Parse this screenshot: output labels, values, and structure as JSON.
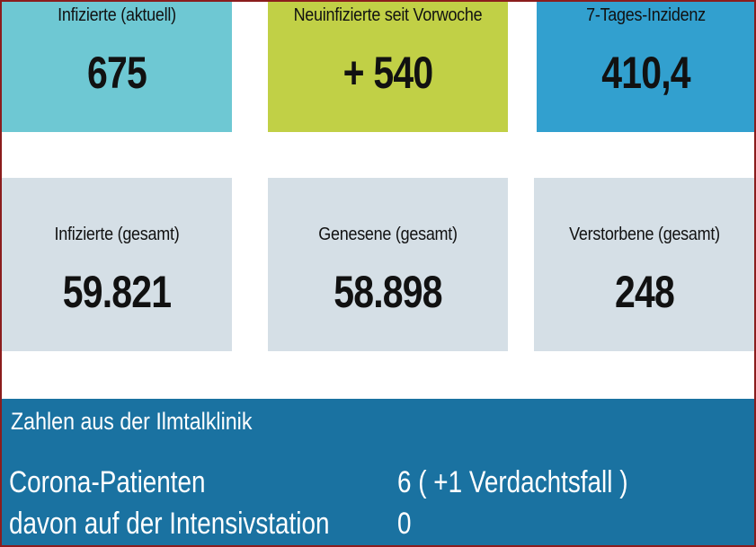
{
  "top_stats": [
    {
      "label": "Infizierte (aktuell)",
      "value": "675"
    },
    {
      "label": "Neuinfizierte seit Vorwoche",
      "value": "+ 540"
    },
    {
      "label": "7-Tages-Inzidenz",
      "value": "410,4"
    }
  ],
  "total_stats": [
    {
      "label": "Infizierte (gesamt)",
      "value": "59.821"
    },
    {
      "label": "Genesene (gesamt)",
      "value": "58.898"
    },
    {
      "label": "Verstorbene (gesamt)",
      "value": "248"
    }
  ],
  "clinic": {
    "heading": "Zahlen aus der Ilmtalklinik",
    "rows": [
      {
        "label": "Corona-Patienten",
        "value": "6 ( +1 Verdachtsfall )"
      },
      {
        "label": "davon auf der Intensivstation",
        "value": "0"
      }
    ]
  },
  "colors": {
    "tile_infected_current": "#6ec8d3",
    "tile_new_infections": "#c1d046",
    "tile_incidence": "#32a0cf",
    "tile_totals": "#d5dfe6",
    "clinic_panel": "#1a72a1",
    "frame": "#8b1d1d"
  }
}
